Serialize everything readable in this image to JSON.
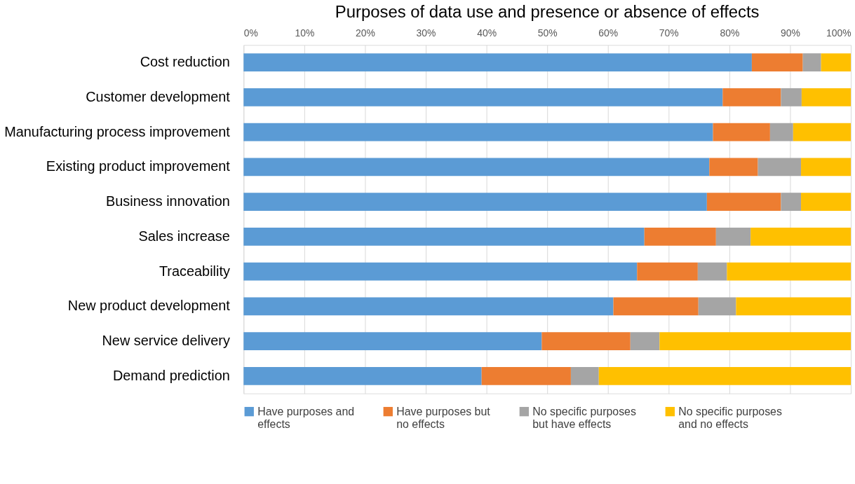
{
  "chart_data": {
    "type": "bar",
    "orientation": "horizontal",
    "stacked": true,
    "title": "Purposes of data use and presence or absence of effects",
    "categories": [
      "Cost reduction",
      "Customer development",
      "Manufacturing process improvement",
      "Existing product improvement",
      "Business innovation",
      "Sales increase",
      "Traceability",
      "New product development",
      "New service delivery",
      "Demand prediction"
    ],
    "series": [
      {
        "name": "Have purposes and effects",
        "color": "#5b9bd5",
        "values": [
          83.7,
          78.9,
          77.3,
          76.7,
          76.3,
          66.0,
          64.8,
          60.9,
          49.1,
          39.2
        ]
      },
      {
        "name": "Have purposes but no effects",
        "color": "#ed7d31",
        "values": [
          8.4,
          9.6,
          9.4,
          8.0,
          12.2,
          11.8,
          10.0,
          14.0,
          14.6,
          14.7
        ]
      },
      {
        "name": "No specific purposes but have effects",
        "color": "#a5a5a5",
        "values": [
          3.0,
          3.4,
          3.8,
          7.1,
          3.3,
          5.7,
          4.8,
          6.2,
          4.8,
          4.6
        ]
      },
      {
        "name": "No specific purposes and no effects",
        "color": "#ffc000",
        "values": [
          4.9,
          8.1,
          9.5,
          8.2,
          8.2,
          16.5,
          20.4,
          18.9,
          31.5,
          41.5
        ]
      }
    ],
    "xlim": [
      0,
      100
    ],
    "xticks": [
      {
        "value": 0,
        "label": "0%"
      },
      {
        "value": 10,
        "label": "10%"
      },
      {
        "value": 20,
        "label": "20%"
      },
      {
        "value": 30,
        "label": "30%"
      },
      {
        "value": 40,
        "label": "40%"
      },
      {
        "value": 50,
        "label": "50%"
      },
      {
        "value": 60,
        "label": "60%"
      },
      {
        "value": 70,
        "label": "70%"
      },
      {
        "value": 80,
        "label": "80%"
      },
      {
        "value": 90,
        "label": "90%"
      },
      {
        "value": 100,
        "label": "100%"
      }
    ],
    "grid": "x",
    "legend": "bottom"
  }
}
